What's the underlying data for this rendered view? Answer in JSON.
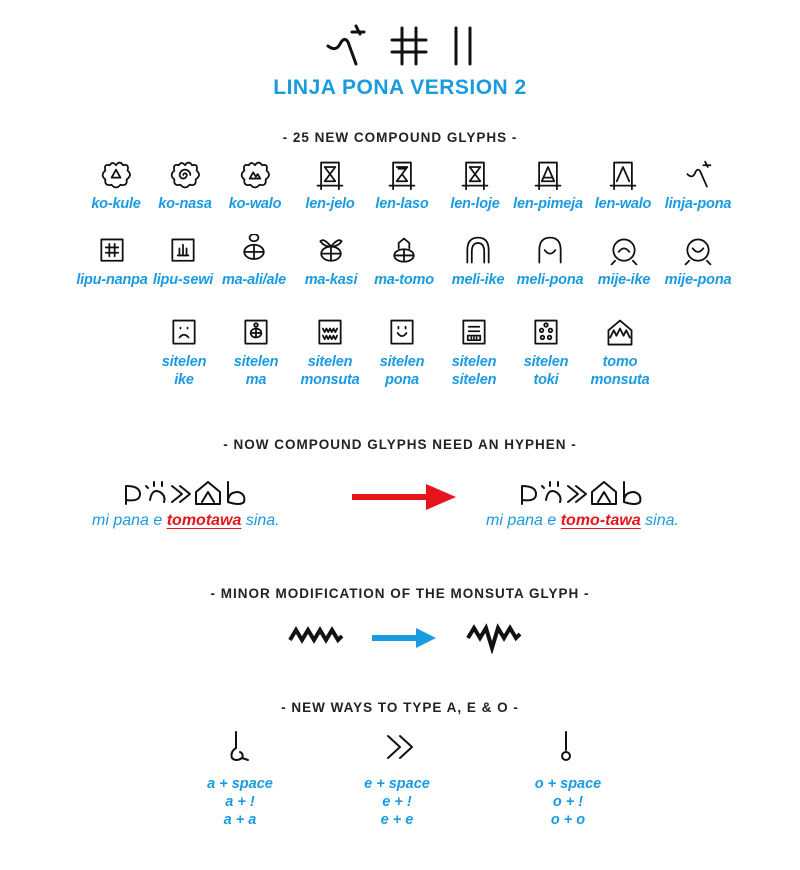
{
  "header": {
    "title": "LINJA PONA VERSION 2",
    "logo_glyphs": [
      "linja-icon",
      "pona-icon",
      "hash-icon"
    ]
  },
  "section_compounds": {
    "heading": "- 25 NEW COMPOUND GLYPHS -",
    "glyphs": [
      {
        "label": "ko-kule",
        "icon": "flower-triangle-icon"
      },
      {
        "label": "ko-nasa",
        "icon": "flower-spiral-icon"
      },
      {
        "label": "ko-walo",
        "icon": "flower-mountain-icon"
      },
      {
        "label": "len-jelo",
        "icon": "frame-hourglass-icon"
      },
      {
        "label": "len-laso",
        "icon": "frame-laso-icon"
      },
      {
        "label": "len-loje",
        "icon": "frame-loje-icon"
      },
      {
        "label": "len-pimeja",
        "icon": "frame-pimeja-icon"
      },
      {
        "label": "len-walo",
        "icon": "frame-walo-icon"
      },
      {
        "label": "linja-pona",
        "icon": "linja-pona-icon"
      },
      {
        "label": "lipu-nanpa",
        "icon": "square-hash-icon"
      },
      {
        "label": "lipu-sewi",
        "icon": "square-sewi-icon"
      },
      {
        "label": "ma-ali/ale",
        "icon": "globe-ali-icon"
      },
      {
        "label": "ma-kasi",
        "icon": "globe-leaf-icon"
      },
      {
        "label": "ma-tomo",
        "icon": "globe-house-icon"
      },
      {
        "label": "meli-ike",
        "icon": "arch-ike-icon"
      },
      {
        "label": "meli-pona",
        "icon": "arch-pona-icon"
      },
      {
        "label": "mije-ike",
        "icon": "head-ike-icon"
      },
      {
        "label": "mije-pona",
        "icon": "head-pona-icon"
      },
      {
        "label": "sitelen\nike",
        "icon": "screen-sad-icon"
      },
      {
        "label": "sitelen\nma",
        "icon": "screen-ma-icon"
      },
      {
        "label": "sitelen\nmonsuta",
        "icon": "screen-monsuta-icon"
      },
      {
        "label": "sitelen\npona",
        "icon": "screen-smile-icon"
      },
      {
        "label": "sitelen\nsitelen",
        "icon": "screen-sitelen-icon"
      },
      {
        "label": "sitelen\ntoki",
        "icon": "screen-toki-icon"
      },
      {
        "label": "tomo\nmonsuta",
        "icon": "house-monsuta-icon"
      }
    ]
  },
  "section_hyphen": {
    "heading": "- NOW COMPOUND GLYPHS NEED AN HYPHEN -",
    "before": {
      "pre": "mi pana e ",
      "highlight": "tomotawa",
      "post": " sina."
    },
    "after": {
      "pre": "mi pana e ",
      "highlight": "tomo-tawa",
      "post": " sina."
    },
    "arrow_color": "#e8141b"
  },
  "section_monsuta": {
    "heading": "- MINOR MODIFICATION OF THE MONSUTA GLYPH -",
    "arrow_color": "#1a9be0"
  },
  "section_vowels": {
    "heading": "- NEW WAYS TO TYPE A, E & O -",
    "columns": [
      {
        "icon": "a-glyph-icon",
        "lines": [
          "a + space",
          "a + !",
          "a + a"
        ]
      },
      {
        "icon": "e-glyph-icon",
        "lines": [
          "e + space",
          "e + !",
          "e + e"
        ]
      },
      {
        "icon": "o-glyph-icon",
        "lines": [
          "o + space",
          "o + !",
          "o + o"
        ]
      }
    ]
  },
  "colors": {
    "accent": "#1a9be0",
    "highlight": "#e8141b",
    "ink": "#111111"
  }
}
